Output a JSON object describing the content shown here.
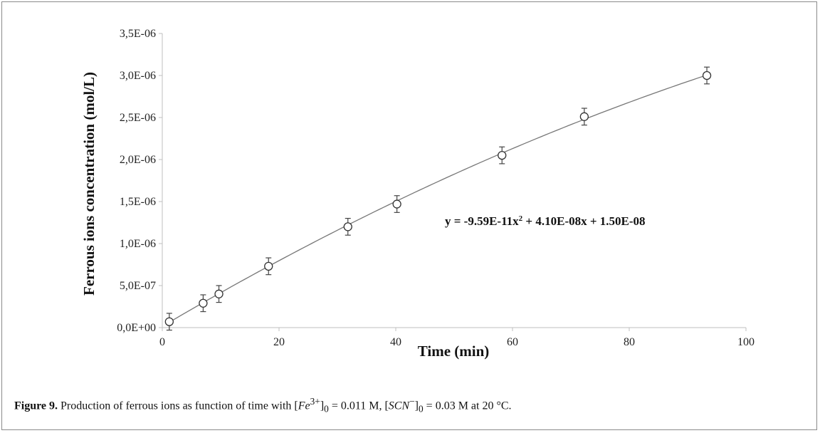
{
  "chart_data": {
    "type": "scatter",
    "title": "",
    "xlabel": "Time (min)",
    "ylabel": "Ferrous ions concentration (mol/L)",
    "xlim": [
      0,
      100
    ],
    "ylim": [
      0,
      3.5e-06
    ],
    "x_ticks": [
      0,
      20,
      40,
      60,
      80,
      100
    ],
    "y_ticks": [
      0,
      5e-07,
      1e-06,
      1.5e-06,
      2e-06,
      2.5e-06,
      3e-06,
      3.5e-06
    ],
    "x_tick_labels": [
      "0",
      "20",
      "40",
      "60",
      "80",
      "100"
    ],
    "y_tick_labels": [
      "0,0E+00",
      "5,0E-07",
      "1,0E-06",
      "1,5E-06",
      "2,0E-06",
      "2,5E-06",
      "3,0E-06",
      "3,5E-06"
    ],
    "grid": false,
    "legend": "none",
    "series": [
      {
        "points": [
          {
            "x": 1.2,
            "y": 7e-08,
            "err": 1e-07
          },
          {
            "x": 7,
            "y": 2.9e-07,
            "err": 1e-07
          },
          {
            "x": 9.7,
            "y": 4e-07,
            "err": 1e-07
          },
          {
            "x": 18.2,
            "y": 7.3e-07,
            "err": 1e-07
          },
          {
            "x": 31.8,
            "y": 1.2e-06,
            "err": 1e-07
          },
          {
            "x": 40.2,
            "y": 1.47e-06,
            "err": 1e-07
          },
          {
            "x": 58.2,
            "y": 2.05e-06,
            "err": 1e-07
          },
          {
            "x": 72.3,
            "y": 2.51e-06,
            "err": 1e-07
          },
          {
            "x": 93.3,
            "y": 3e-06,
            "err": 1e-07
          }
        ],
        "marker": "open-circle",
        "color": "#444444"
      }
    ],
    "trendline": {
      "type": "polynomial",
      "coefficients": {
        "a": -9.59e-11,
        "b": 4.1e-08,
        "c": 1.5e-08
      },
      "x_range": [
        1,
        93.3
      ],
      "color": "#777777",
      "equation_parts": {
        "prefix": "y = -9.59E-11x",
        "exponent": "2",
        "suffix": " + 4.10E-08x + 1.50E-08"
      }
    }
  },
  "caption": {
    "label": "Figure 9.",
    "text_start": " Production of ferrous ions as function of time with [",
    "fe_species": "Fe",
    "fe_charge": "3+",
    "fe_sub": "0",
    "fe_value": " = 0.011 M, [",
    "scn_species": "SCN",
    "scn_charge": "−",
    "scn_sub": "0",
    "scn_value": " = 0.03 M at 20 °C."
  }
}
